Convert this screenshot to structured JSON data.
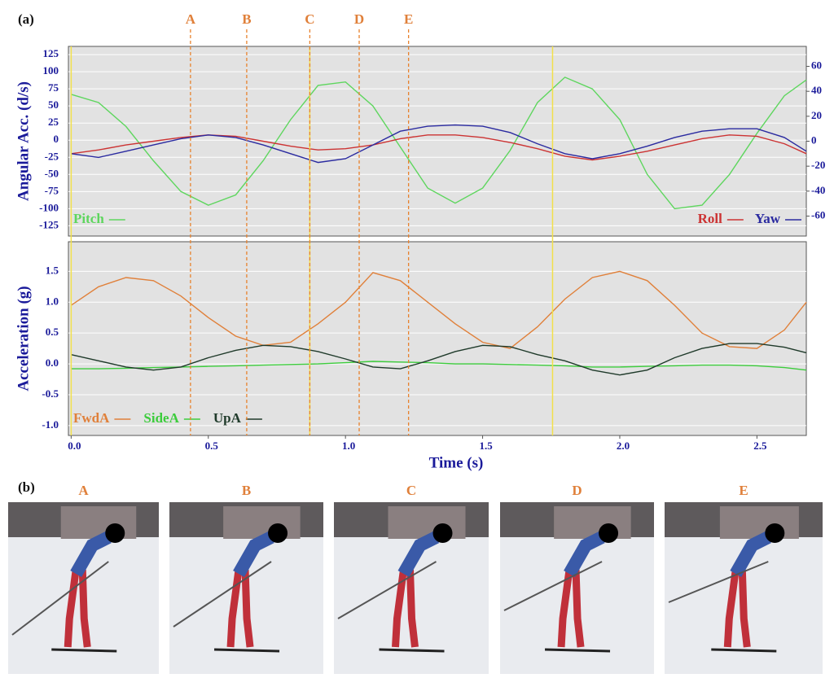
{
  "panel_labels": [
    "(a)",
    "(b)"
  ],
  "events": [
    {
      "label": "A",
      "time": 0.435
    },
    {
      "label": "B",
      "time": 0.64
    },
    {
      "label": "C",
      "time": 0.87
    },
    {
      "label": "D",
      "time": 1.05
    },
    {
      "label": "E",
      "time": 1.23
    }
  ],
  "highlights": [
    0,
    0.87,
    1.755
  ],
  "chart_data": [
    {
      "type": "line",
      "ylabel": "Angular Acc. (d/s)",
      "grid": true,
      "legend": "lower left",
      "x": [
        0,
        0.1,
        0.2,
        0.3,
        0.4,
        0.5,
        0.6,
        0.7,
        0.8,
        0.9,
        1.0,
        1.1,
        1.2,
        1.3,
        1.4,
        1.5,
        1.6,
        1.7,
        1.8,
        1.9,
        2.0,
        2.1,
        2.2,
        2.3,
        2.4,
        2.5,
        2.6,
        2.68
      ],
      "xlim": [
        -0.01,
        2.68
      ],
      "ylim": [
        -140,
        137
      ],
      "yticks": [
        -125,
        -100,
        -75,
        -50,
        -25,
        0,
        25,
        50,
        75,
        100,
        125
      ],
      "y2lim": [
        -76,
        76
      ],
      "y2ticks": [
        -60,
        -40,
        -20,
        0,
        20,
        40,
        60
      ],
      "series": [
        {
          "name": "Pitch",
          "color": "#5ed65e",
          "values": [
            67,
            55,
            20,
            -30,
            -75,
            -95,
            -80,
            -30,
            30,
            80,
            85,
            50,
            -10,
            -70,
            -92,
            -70,
            -15,
            55,
            92,
            75,
            30,
            -50,
            -100,
            -95,
            -50,
            10,
            65,
            88
          ]
        },
        {
          "name": "Roll",
          "color": "#cc3333",
          "axis": "y2",
          "values": [
            -10,
            -7,
            -3,
            0,
            3,
            5,
            4,
            0,
            -4,
            -7,
            -6,
            -3,
            2,
            5,
            5,
            3,
            -1,
            -6,
            -12,
            -15,
            -12,
            -8,
            -3,
            2,
            5,
            4,
            -2,
            -10
          ]
        },
        {
          "name": "Yaw",
          "color": "#2a2aa0",
          "axis": "y2",
          "values": [
            -10,
            -13,
            -8,
            -3,
            2,
            5,
            3,
            -3,
            -10,
            -17,
            -14,
            -3,
            8,
            12,
            13,
            12,
            7,
            -2,
            -10,
            -14,
            -10,
            -4,
            3,
            8,
            10,
            10,
            3,
            -8
          ]
        }
      ]
    },
    {
      "type": "line",
      "ylabel": "Acceleration (g)",
      "xlabel": "Time (s)",
      "grid": true,
      "legend": "lower left",
      "x": [
        0,
        0.1,
        0.2,
        0.3,
        0.4,
        0.5,
        0.6,
        0.7,
        0.8,
        0.9,
        1.0,
        1.1,
        1.2,
        1.3,
        1.4,
        1.5,
        1.6,
        1.7,
        1.8,
        1.9,
        2.0,
        2.1,
        2.2,
        2.3,
        2.4,
        2.5,
        2.6,
        2.68
      ],
      "xlim": [
        -0.01,
        2.68
      ],
      "xticks": [
        {
          "value": 0,
          "label": "0.0"
        },
        0.5,
        {
          "value": 1,
          "label": "1.0"
        },
        1.5,
        {
          "value": 2,
          "label": "2.0"
        },
        2.5
      ],
      "ylim": [
        -1.16,
        1.98
      ],
      "yticks": [
        {
          "value": -1,
          "label": "-1.0"
        },
        -0.5,
        {
          "value": 0,
          "label": "0.0"
        },
        0.5,
        {
          "value": 1,
          "label": "1.0"
        },
        1.5
      ],
      "series": [
        {
          "name": "FwdA",
          "color": "#e0803a",
          "values": [
            0.95,
            1.25,
            1.4,
            1.35,
            1.1,
            0.75,
            0.45,
            0.3,
            0.35,
            0.65,
            1.0,
            1.48,
            1.35,
            1.0,
            0.65,
            0.35,
            0.25,
            0.6,
            1.05,
            1.4,
            1.5,
            1.35,
            0.95,
            0.5,
            0.28,
            0.25,
            0.55,
            1.0
          ]
        },
        {
          "name": "SideA",
          "color": "#3ccc3c",
          "values": [
            -0.08,
            -0.08,
            -0.07,
            -0.06,
            -0.05,
            -0.04,
            -0.03,
            -0.02,
            -0.01,
            0.0,
            0.02,
            0.04,
            0.03,
            0.02,
            0.0,
            0.0,
            -0.01,
            -0.02,
            -0.03,
            -0.05,
            -0.05,
            -0.04,
            -0.03,
            -0.02,
            -0.02,
            -0.03,
            -0.06,
            -0.1
          ]
        },
        {
          "name": "UpA",
          "color": "#1f3a2a",
          "values": [
            0.15,
            0.05,
            -0.05,
            -0.1,
            -0.05,
            0.1,
            0.22,
            0.3,
            0.28,
            0.2,
            0.08,
            -0.05,
            -0.08,
            0.05,
            0.2,
            0.3,
            0.28,
            0.15,
            0.05,
            -0.1,
            -0.18,
            -0.1,
            0.1,
            0.25,
            0.33,
            0.33,
            0.27,
            0.18
          ]
        }
      ]
    }
  ],
  "photos": [
    {
      "label": "A"
    },
    {
      "label": "B"
    },
    {
      "label": "C"
    },
    {
      "label": "D"
    },
    {
      "label": "E"
    }
  ]
}
